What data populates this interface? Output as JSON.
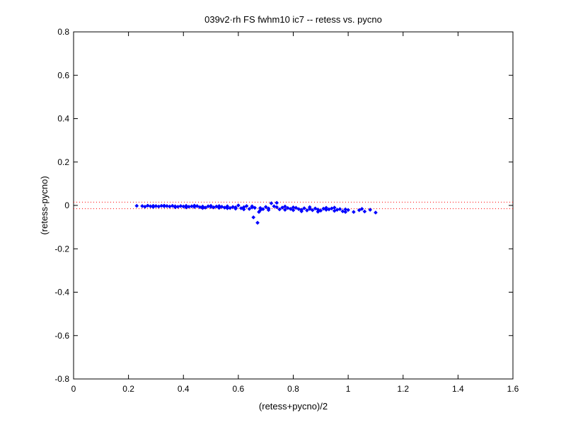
{
  "chart_data": {
    "type": "scatter",
    "title": "039v2·rh FS fwhm10 ic7 -- retess vs. pycno",
    "xlabel": "(retess+pycno)/2",
    "ylabel": "(retess-pycno)",
    "xlim": [
      0,
      1.6
    ],
    "ylim": [
      -0.8,
      0.8
    ],
    "x_ticks": [
      0,
      0.2,
      0.4,
      0.6,
      0.8,
      1.0,
      1.2,
      1.4,
      1.6
    ],
    "x_tick_labels": [
      "0",
      "0.2",
      "0.4",
      "0.6",
      "0.8",
      "1",
      "1.2",
      "1.4",
      "1.6"
    ],
    "y_ticks": [
      -0.8,
      -0.6,
      -0.4,
      -0.2,
      0,
      0.2,
      0.4,
      0.6,
      0.8
    ],
    "y_tick_labels": [
      "-0.8",
      "-0.6",
      "-0.4",
      "-0.2",
      "0",
      "0.2",
      "0.4",
      "0.6",
      "0.8"
    ],
    "grid": false,
    "reference_lines": [
      {
        "y": 0.015,
        "style": "dotted",
        "color": "#ff0000"
      },
      {
        "y": -0.015,
        "style": "dotted",
        "color": "#ff0000"
      }
    ],
    "marker_color": "#0000ff",
    "axis_color": "#000000",
    "series": [
      {
        "points": [
          [
            0.23,
            -0.002
          ],
          [
            0.25,
            -0.003
          ],
          [
            0.27,
            -0.001
          ],
          [
            0.28,
            -0.004
          ],
          [
            0.29,
            -0.002
          ],
          [
            0.3,
            -0.003
          ],
          [
            0.31,
            -0.005
          ],
          [
            0.32,
            -0.002
          ],
          [
            0.33,
            -0.004
          ],
          [
            0.34,
            -0.003
          ],
          [
            0.35,
            -0.005
          ],
          [
            0.36,
            -0.002
          ],
          [
            0.37,
            -0.004
          ],
          [
            0.38,
            -0.006
          ],
          [
            0.39,
            -0.003
          ],
          [
            0.4,
            -0.005
          ],
          [
            0.41,
            -0.002
          ],
          [
            0.42,
            -0.006
          ],
          [
            0.43,
            -0.004
          ],
          [
            0.44,
            -0.007
          ],
          [
            0.45,
            -0.003
          ],
          [
            0.46,
            -0.008
          ],
          [
            0.47,
            -0.005
          ],
          [
            0.48,
            -0.01
          ],
          [
            0.49,
            -0.004
          ],
          [
            0.5,
            -0.007
          ],
          [
            0.51,
            -0.009
          ],
          [
            0.52,
            -0.005
          ],
          [
            0.53,
            -0.011
          ],
          [
            0.54,
            -0.006
          ],
          [
            0.55,
            -0.01
          ],
          [
            0.56,
            -0.004
          ],
          [
            0.57,
            -0.012
          ],
          [
            0.58,
            -0.007
          ],
          [
            0.59,
            -0.009
          ],
          [
            0.6,
            0.0
          ],
          [
            0.61,
            -0.013
          ],
          [
            0.62,
            -0.008
          ],
          [
            0.63,
            -0.003
          ],
          [
            0.64,
            -0.016
          ],
          [
            0.65,
            -0.009
          ],
          [
            0.655,
            -0.055
          ],
          [
            0.66,
            -0.011
          ],
          [
            0.67,
            -0.08
          ],
          [
            0.675,
            -0.03
          ],
          [
            0.68,
            -0.012
          ],
          [
            0.69,
            -0.017
          ],
          [
            0.7,
            -0.007
          ],
          [
            0.71,
            -0.014
          ],
          [
            0.72,
            0.01
          ],
          [
            0.73,
            -0.004
          ],
          [
            0.74,
            0.012
          ],
          [
            0.75,
            -0.018
          ],
          [
            0.76,
            -0.01
          ],
          [
            0.77,
            -0.02
          ],
          [
            0.78,
            -0.012
          ],
          [
            0.79,
            -0.016
          ],
          [
            0.8,
            -0.022
          ],
          [
            0.81,
            -0.011
          ],
          [
            0.82,
            -0.017
          ],
          [
            0.83,
            -0.02
          ],
          [
            0.84,
            -0.013
          ],
          [
            0.85,
            -0.023
          ],
          [
            0.86,
            -0.016
          ],
          [
            0.87,
            -0.022
          ],
          [
            0.88,
            -0.014
          ],
          [
            0.89,
            -0.019
          ],
          [
            0.9,
            -0.024
          ],
          [
            0.91,
            -0.015
          ],
          [
            0.92,
            -0.02
          ],
          [
            0.93,
            -0.018
          ],
          [
            0.94,
            -0.014
          ],
          [
            0.95,
            -0.025
          ],
          [
            0.96,
            -0.02
          ],
          [
            0.97,
            -0.017
          ],
          [
            0.98,
            -0.027
          ],
          [
            0.99,
            -0.018
          ],
          [
            1.0,
            -0.021
          ],
          [
            1.02,
            -0.03
          ],
          [
            1.04,
            -0.022
          ],
          [
            1.05,
            -0.016
          ],
          [
            1.06,
            -0.028
          ],
          [
            1.08,
            -0.02
          ],
          [
            1.1,
            -0.033
          ],
          [
            0.26,
            -0.006
          ],
          [
            0.29,
            -0.007
          ],
          [
            0.33,
            -0.001
          ],
          [
            0.37,
            -0.008
          ],
          [
            0.41,
            -0.009
          ],
          [
            0.44,
            -0.001
          ],
          [
            0.47,
            -0.012
          ],
          [
            0.5,
            -0.002
          ],
          [
            0.53,
            -0.003
          ],
          [
            0.56,
            -0.013
          ],
          [
            0.59,
            -0.015
          ],
          [
            0.62,
            -0.018
          ],
          [
            0.65,
            -0.004
          ],
          [
            0.68,
            -0.022
          ],
          [
            0.71,
            -0.021
          ],
          [
            0.74,
            -0.008
          ],
          [
            0.77,
            -0.005
          ],
          [
            0.8,
            -0.009
          ],
          [
            0.83,
            -0.027
          ],
          [
            0.86,
            -0.008
          ],
          [
            0.89,
            -0.029
          ],
          [
            0.92,
            -0.011
          ],
          [
            0.95,
            -0.01
          ],
          [
            0.99,
            -0.03
          ]
        ]
      }
    ]
  }
}
